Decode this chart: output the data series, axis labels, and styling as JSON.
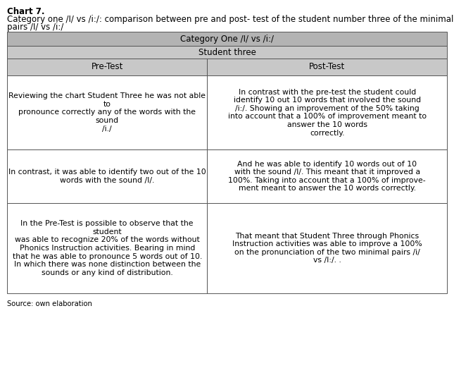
{
  "title_bold": "Chart 7.",
  "title_normal1": "Category one /I/ vs /i:/: comparison between pre and post- test of the student number three of the minimal",
  "title_normal2": "pairs /I/ vs /i:/",
  "header1": "Category One /I/ vs /i:/",
  "header2": "Student three",
  "col1_header": "Pre-Test",
  "col2_header": "Post-Test",
  "rows": [
    {
      "pre": "Reviewing the chart Student Three he was not able\nto\npronounce correctly any of the words with the\nsound\n/i./",
      "post": "In contrast with the pre-test the student could\nidentify 10 out 10 words that involved the sound\n/i:/. Showing an improvement of the 50% taking\ninto account that a 100% of improvement meant to\nanswer the 10 words\ncorrectly."
    },
    {
      "pre": "In contrast, it was able to identify two out of the 10\nwords with the sound /I/.",
      "post": "And he was able to identify 10 words out of 10\nwith the sound /I/. This meant that it improved a\n100%. Taking into account that a 100% of improve-\nment meant to answer the 10 words correctly."
    },
    {
      "pre": "In the Pre-Test is possible to observe that the\nstudent\nwas able to recognize 20% of the words without\nPhonics Instruction activities. Bearing in mind\nthat he was able to pronounce 5 words out of 10.\nIn which there was none distinction between the\nsounds or any kind of distribution.",
      "post": "That meant that Student Three through Phonics\nInstruction activities was able to improve a 100%\non the pronunciation of the two minimal pairs /i/\nvs /I:/. ."
    }
  ],
  "source": "Source: own elaboration",
  "header_bg": "#b3b3b3",
  "subheader_bg": "#c8c8c8",
  "col_header_bg": "#c8c8c8",
  "cell_bg": "#ffffff",
  "border_color": "#555555",
  "text_color": "#000000",
  "title_fontsize": 8.5,
  "cell_fontsize": 7.8,
  "header_fontsize": 8.5
}
